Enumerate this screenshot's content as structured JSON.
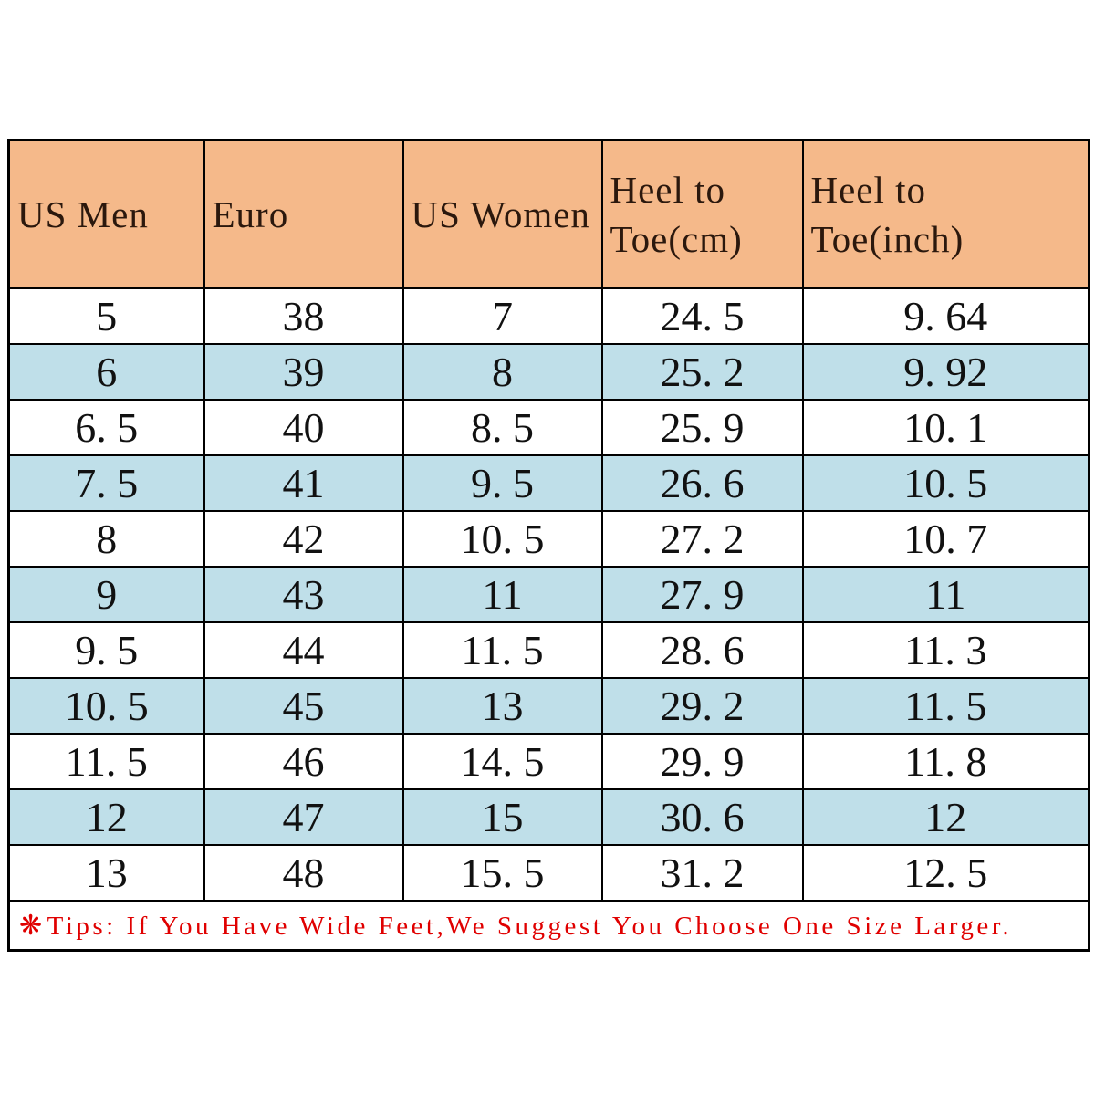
{
  "chart_data": {
    "type": "table",
    "columns": [
      "US Men",
      "Euro",
      "US Women",
      "Heel to Toe(cm)",
      "Heel to Toe(inch)"
    ],
    "rows": [
      [
        5,
        38,
        7,
        24.5,
        9.64
      ],
      [
        6,
        39,
        8,
        25.2,
        9.92
      ],
      [
        6.5,
        40,
        8.5,
        25.9,
        10.1
      ],
      [
        7.5,
        41,
        9.5,
        26.6,
        10.5
      ],
      [
        8,
        42,
        10.5,
        27.2,
        10.7
      ],
      [
        9,
        43,
        11,
        27.9,
        11
      ],
      [
        9.5,
        44,
        11.5,
        28.6,
        11.3
      ],
      [
        10.5,
        45,
        13,
        29.2,
        11.5
      ],
      [
        11.5,
        46,
        14.5,
        29.9,
        11.8
      ],
      [
        12,
        47,
        15,
        30.6,
        12
      ],
      [
        13,
        48,
        15.5,
        31.2,
        12.5
      ]
    ],
    "footnote": "Tips: If You Have Wide Feet,We Suggest You Choose One Size Larger."
  },
  "table": {
    "headers": [
      "US Men",
      "Euro",
      "US Women",
      "Heel to\nToe(cm)",
      "Heel to\nToe(inch)"
    ],
    "column_keys": [
      "us-men",
      "euro",
      "us-women",
      "heel-to-toe-cm",
      "heel-to-toe-inch"
    ],
    "rows": [
      [
        "5",
        "38",
        "7",
        "24. 5",
        "9. 64"
      ],
      [
        "6",
        "39",
        "8",
        "25. 2",
        "9. 92"
      ],
      [
        "6. 5",
        "40",
        "8. 5",
        "25. 9",
        "10. 1"
      ],
      [
        "7. 5",
        "41",
        "9. 5",
        "26. 6",
        "10. 5"
      ],
      [
        "8",
        "42",
        "10. 5",
        "27. 2",
        "10. 7"
      ],
      [
        "9",
        "43",
        "11",
        "27. 9",
        "11"
      ],
      [
        "9. 5",
        "44",
        "11. 5",
        "28. 6",
        "11. 3"
      ],
      [
        "10. 5",
        "45",
        "13",
        "29. 2",
        "11. 5"
      ],
      [
        "11. 5",
        "46",
        "14. 5",
        "29. 9",
        "11. 8"
      ],
      [
        "12",
        "47",
        "15",
        "30. 6",
        "12"
      ],
      [
        "13",
        "48",
        "15. 5",
        "31. 2",
        "12. 5"
      ]
    ],
    "tips": {
      "icon": "❋",
      "text": "Tips: If You Have Wide Feet,We Suggest You Choose One Size Larger."
    },
    "colors": {
      "header_bg": "#f5b98a",
      "alt_row_bg": "#bfdfe9",
      "border": "#000000",
      "header_text": "#2b180d",
      "body_text": "#111111",
      "tips_text": "#e00000"
    }
  }
}
